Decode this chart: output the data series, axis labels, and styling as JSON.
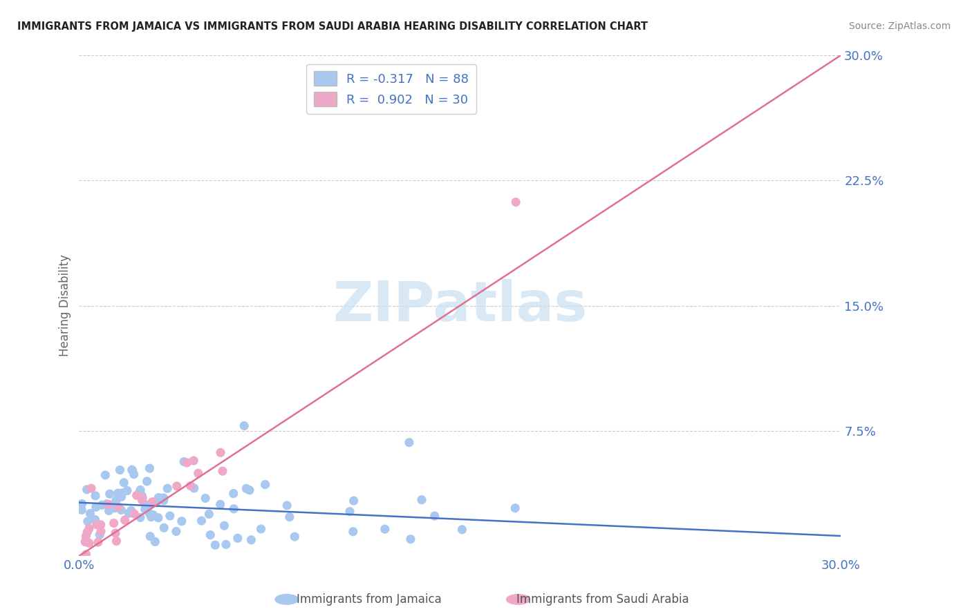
{
  "title": "IMMIGRANTS FROM JAMAICA VS IMMIGRANTS FROM SAUDI ARABIA HEARING DISABILITY CORRELATION CHART",
  "source": "Source: ZipAtlas.com",
  "ylabel_label": "Hearing Disability",
  "legend1_label": "R = -0.317   N = 88",
  "legend2_label": "R =  0.902   N = 30",
  "jamaica_color": "#a8c8f0",
  "saudi_color": "#f0a8c8",
  "jamaica_line_color": "#4472c4",
  "saudi_line_color": "#e07090",
  "axis_label_color": "#4472c4",
  "watermark_color": "#c8dff0",
  "xmin": 0.0,
  "xmax": 0.3,
  "ymin": 0.0,
  "ymax": 0.3,
  "yticks": [
    0.0,
    0.075,
    0.15,
    0.225,
    0.3
  ],
  "ytick_labels": [
    "",
    "7.5%",
    "15.0%",
    "22.5%",
    "30.0%"
  ],
  "xtick_labels_show": [
    "0.0%",
    "30.0%"
  ],
  "jam_line_x0": 0.0,
  "jam_line_y0": 0.032,
  "jam_line_x1": 0.3,
  "jam_line_y1": 0.012,
  "sau_line_x0": 0.0,
  "sau_line_y0": 0.0,
  "sau_line_x1": 0.3,
  "sau_line_y1": 0.3
}
